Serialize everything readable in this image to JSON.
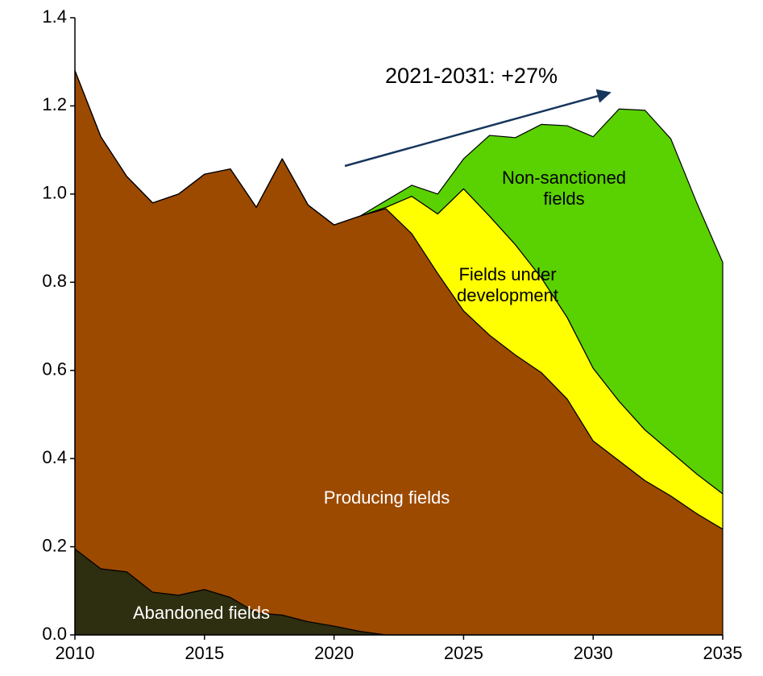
{
  "chart_data": {
    "type": "stacked_area",
    "annotation": "2021-2031: +27%",
    "x": [
      2010,
      2011,
      2012,
      2013,
      2014,
      2015,
      2016,
      2017,
      2018,
      2019,
      2020,
      2021,
      2022,
      2023,
      2024,
      2025,
      2026,
      2027,
      2028,
      2029,
      2030,
      2031,
      2032,
      2033,
      2034,
      2035
    ],
    "series": [
      {
        "name": "Abandoned fields",
        "color": "#2e2e10",
        "values": [
          0.195,
          0.15,
          0.143,
          0.097,
          0.09,
          0.103,
          0.085,
          0.05,
          0.045,
          0.03,
          0.02,
          0.008,
          0,
          0,
          0,
          0,
          0,
          0,
          0,
          0,
          0,
          0,
          0,
          0,
          0,
          0
        ]
      },
      {
        "name": "Producing fields",
        "color": "#9c4a00",
        "values": [
          1.085,
          0.98,
          0.897,
          0.883,
          0.91,
          0.942,
          0.972,
          0.92,
          1.035,
          0.945,
          0.91,
          0.942,
          0.967,
          0.91,
          0.82,
          0.735,
          0.68,
          0.635,
          0.595,
          0.535,
          0.44,
          0.395,
          0.35,
          0.315,
          0.275,
          0.24
        ]
      },
      {
        "name": "Fields under development",
        "color": "#ffff00",
        "values": [
          0,
          0,
          0,
          0,
          0,
          0,
          0,
          0,
          0,
          0,
          0,
          0,
          0.003,
          0.085,
          0.135,
          0.277,
          0.27,
          0.25,
          0.215,
          0.185,
          0.165,
          0.135,
          0.115,
          0.1,
          0.09,
          0.08
        ]
      },
      {
        "name": "Non-sanctioned fields",
        "color": "#5ad100",
        "values": [
          0,
          0,
          0,
          0,
          0,
          0,
          0,
          0,
          0,
          0,
          0,
          0,
          0.015,
          0.025,
          0.045,
          0.068,
          0.183,
          0.243,
          0.348,
          0.435,
          0.525,
          0.663,
          0.725,
          0.71,
          0.615,
          0.525
        ]
      }
    ],
    "xlim": [
      2010,
      2035
    ],
    "xticks": [
      2010,
      2015,
      2020,
      2025,
      2030,
      2035
    ],
    "ylim": [
      0,
      1.4
    ],
    "yticks": [
      {
        "value": 0,
        "label": "0.0"
      },
      0.2,
      0.4,
      0.6,
      0.8,
      {
        "value": 1,
        "label": "1.0"
      },
      1.2,
      1.4
    ]
  }
}
